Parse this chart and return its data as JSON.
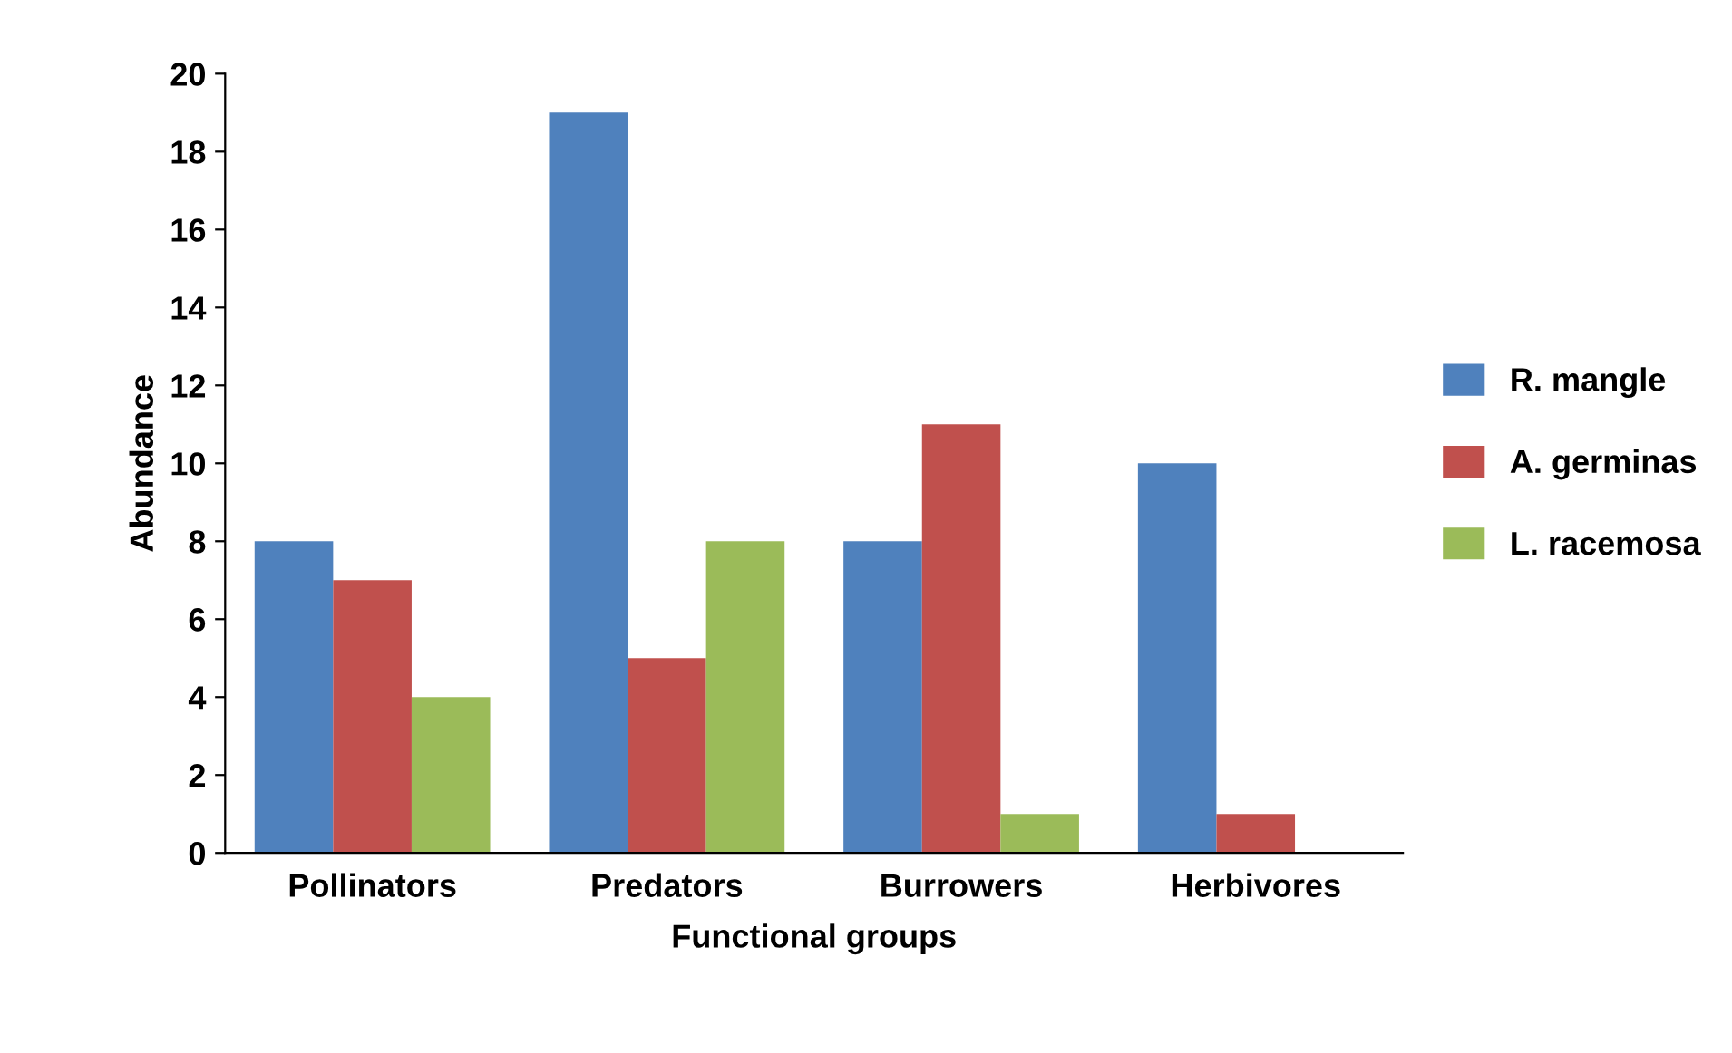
{
  "chart_data": {
    "type": "bar",
    "xlabel": "Functional groups",
    "ylabel": "Abundance",
    "categories": [
      "Pollinators",
      "Predators",
      "Burrowers",
      "Herbivores"
    ],
    "series": [
      {
        "name": "R. mangle",
        "color": "#4f81bd",
        "values": [
          8,
          19,
          8,
          10
        ]
      },
      {
        "name": "A. germinas",
        "color": "#c0504d",
        "values": [
          7,
          5,
          11,
          1
        ]
      },
      {
        "name": "L. racemosa",
        "color": "#9bbb59",
        "values": [
          4,
          8,
          1,
          0
        ]
      }
    ],
    "ylim": [
      0,
      20
    ],
    "yticks": [
      0,
      2,
      4,
      6,
      8,
      10,
      12,
      14,
      16,
      18,
      20
    ],
    "grid": false,
    "legend": "right"
  }
}
